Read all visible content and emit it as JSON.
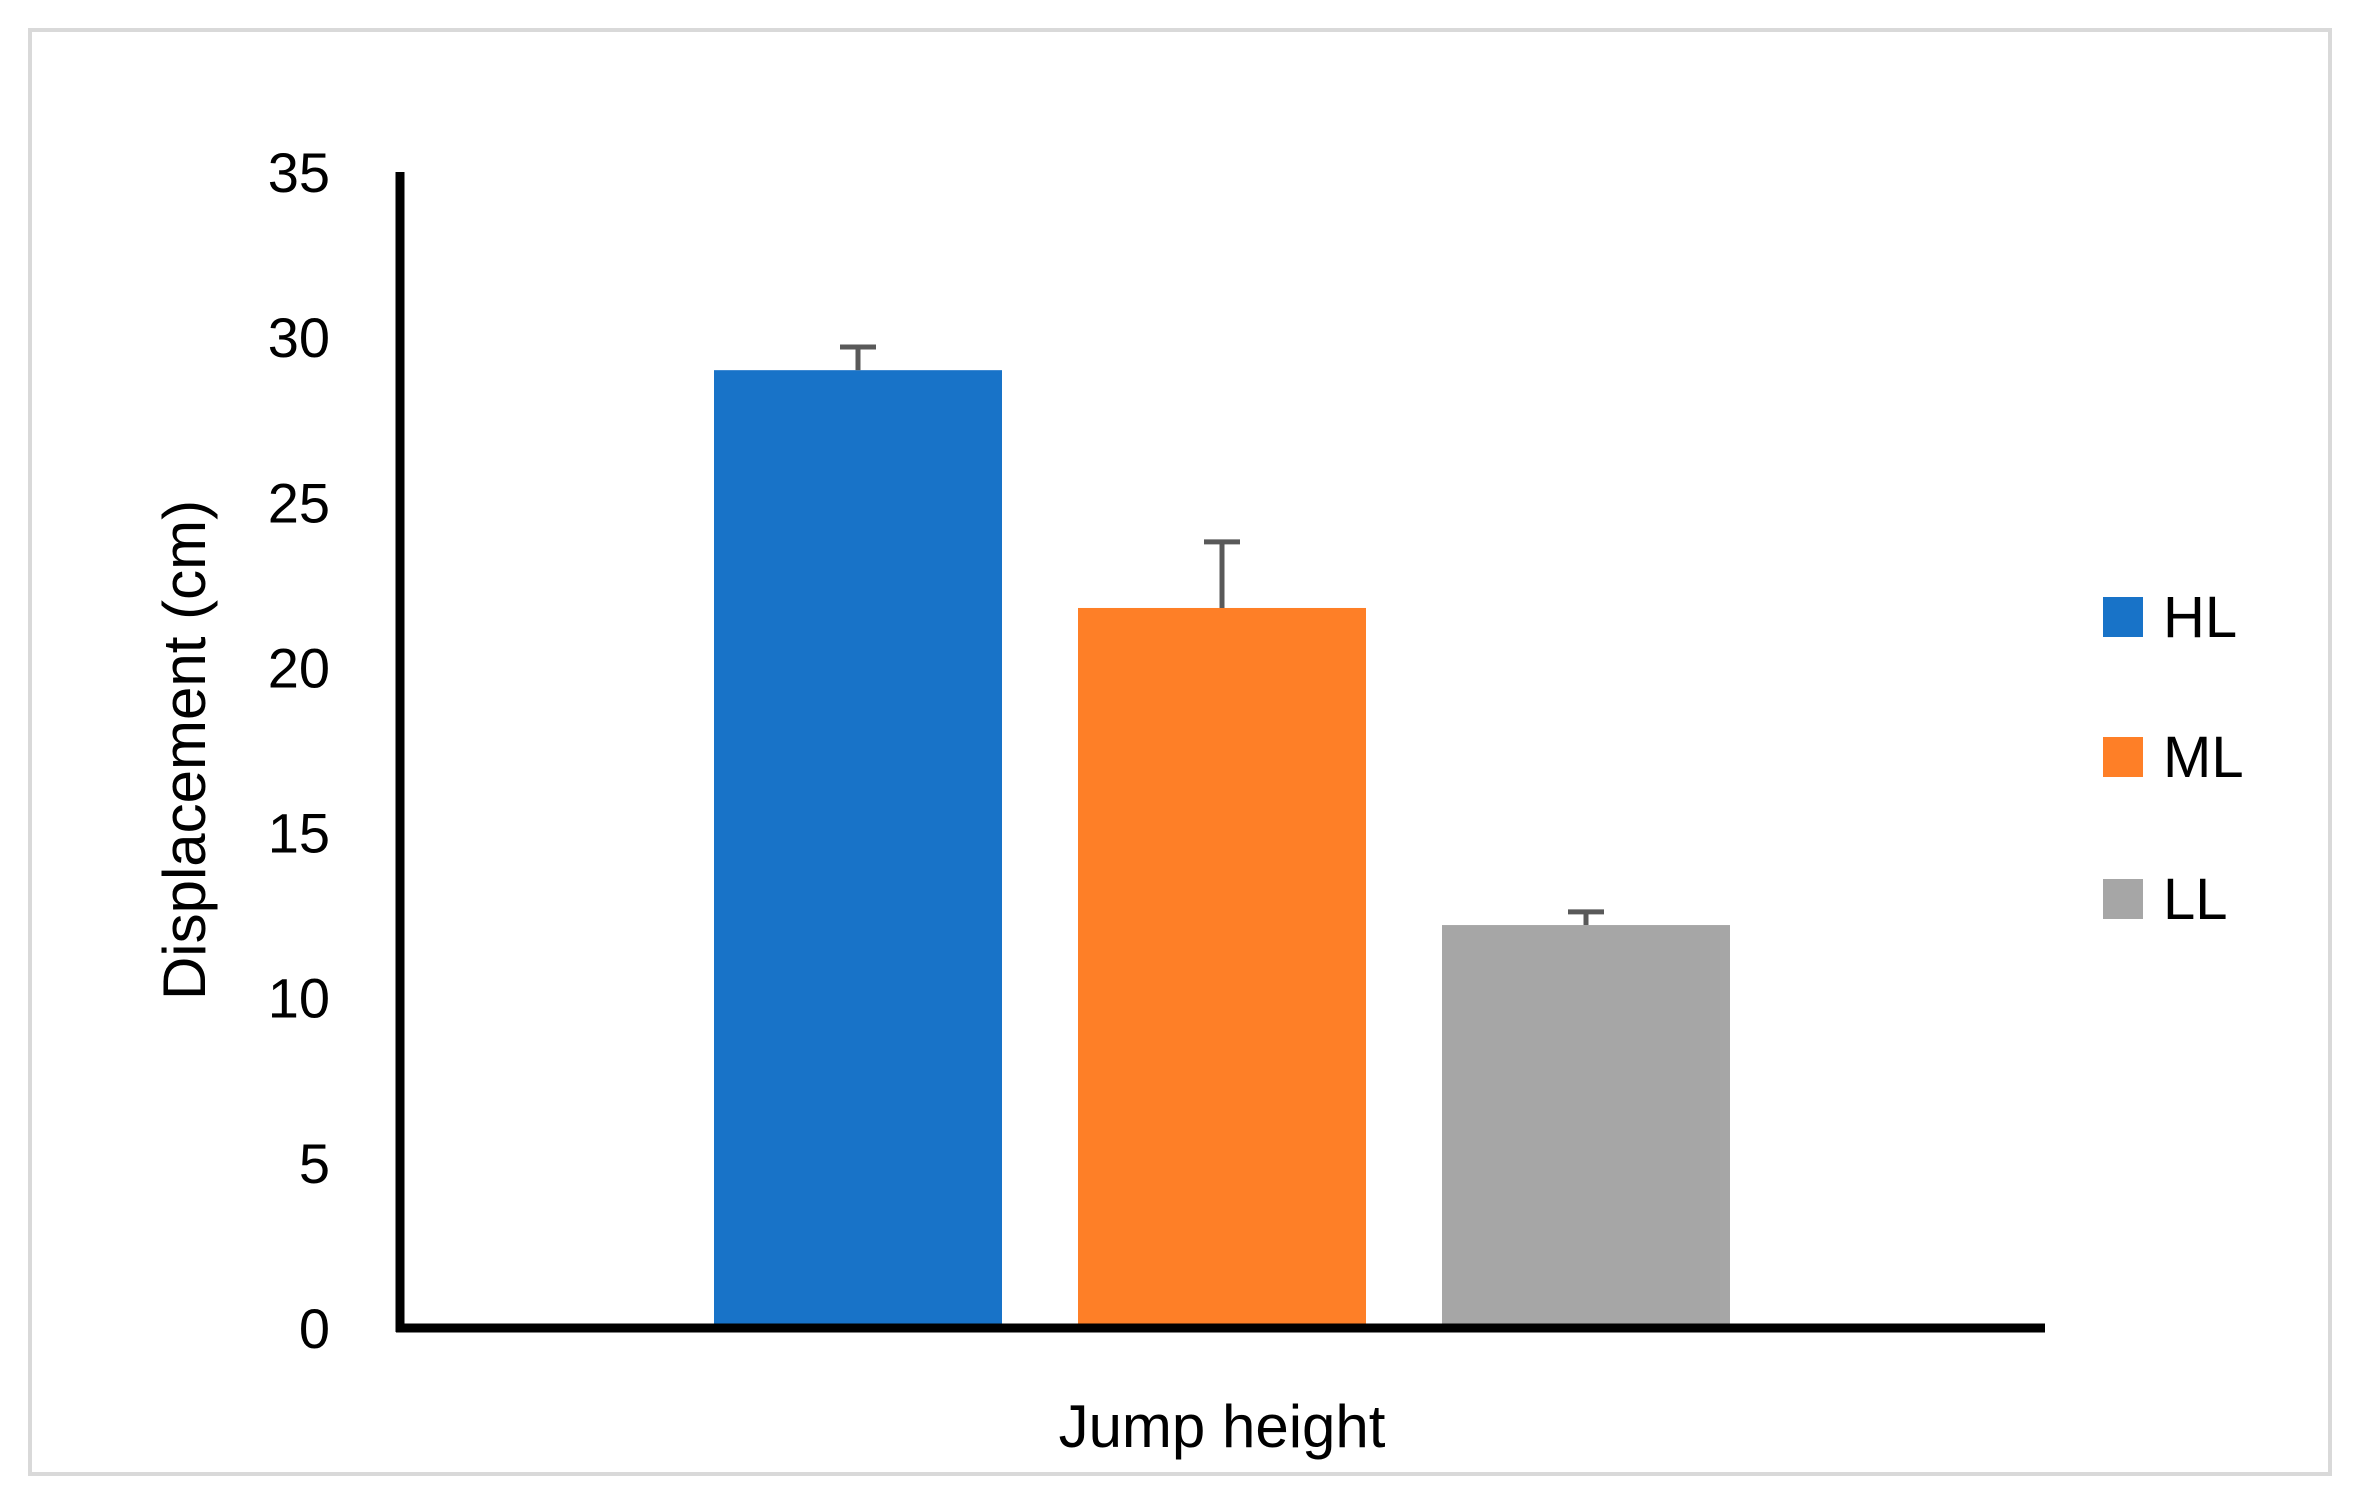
{
  "chart_data": {
    "type": "bar",
    "title": "",
    "xlabel": "Jump height",
    "ylabel": "Displacement (cm)",
    "ylim": [
      0,
      35
    ],
    "yticks": [
      0,
      5,
      10,
      15,
      20,
      25,
      30,
      35
    ],
    "grid": false,
    "legend_position": "right",
    "categories": [
      "Jump height"
    ],
    "series": [
      {
        "name": "HL",
        "values": [
          29.0
        ],
        "error": [
          0.7
        ],
        "color": "#1873C8"
      },
      {
        "name": "ML",
        "values": [
          21.8
        ],
        "error": [
          2.0
        ],
        "color": "#FE7F27"
      },
      {
        "name": "LL",
        "values": [
          12.2
        ],
        "error": [
          0.4
        ],
        "color": "#A6A6A6"
      }
    ]
  }
}
